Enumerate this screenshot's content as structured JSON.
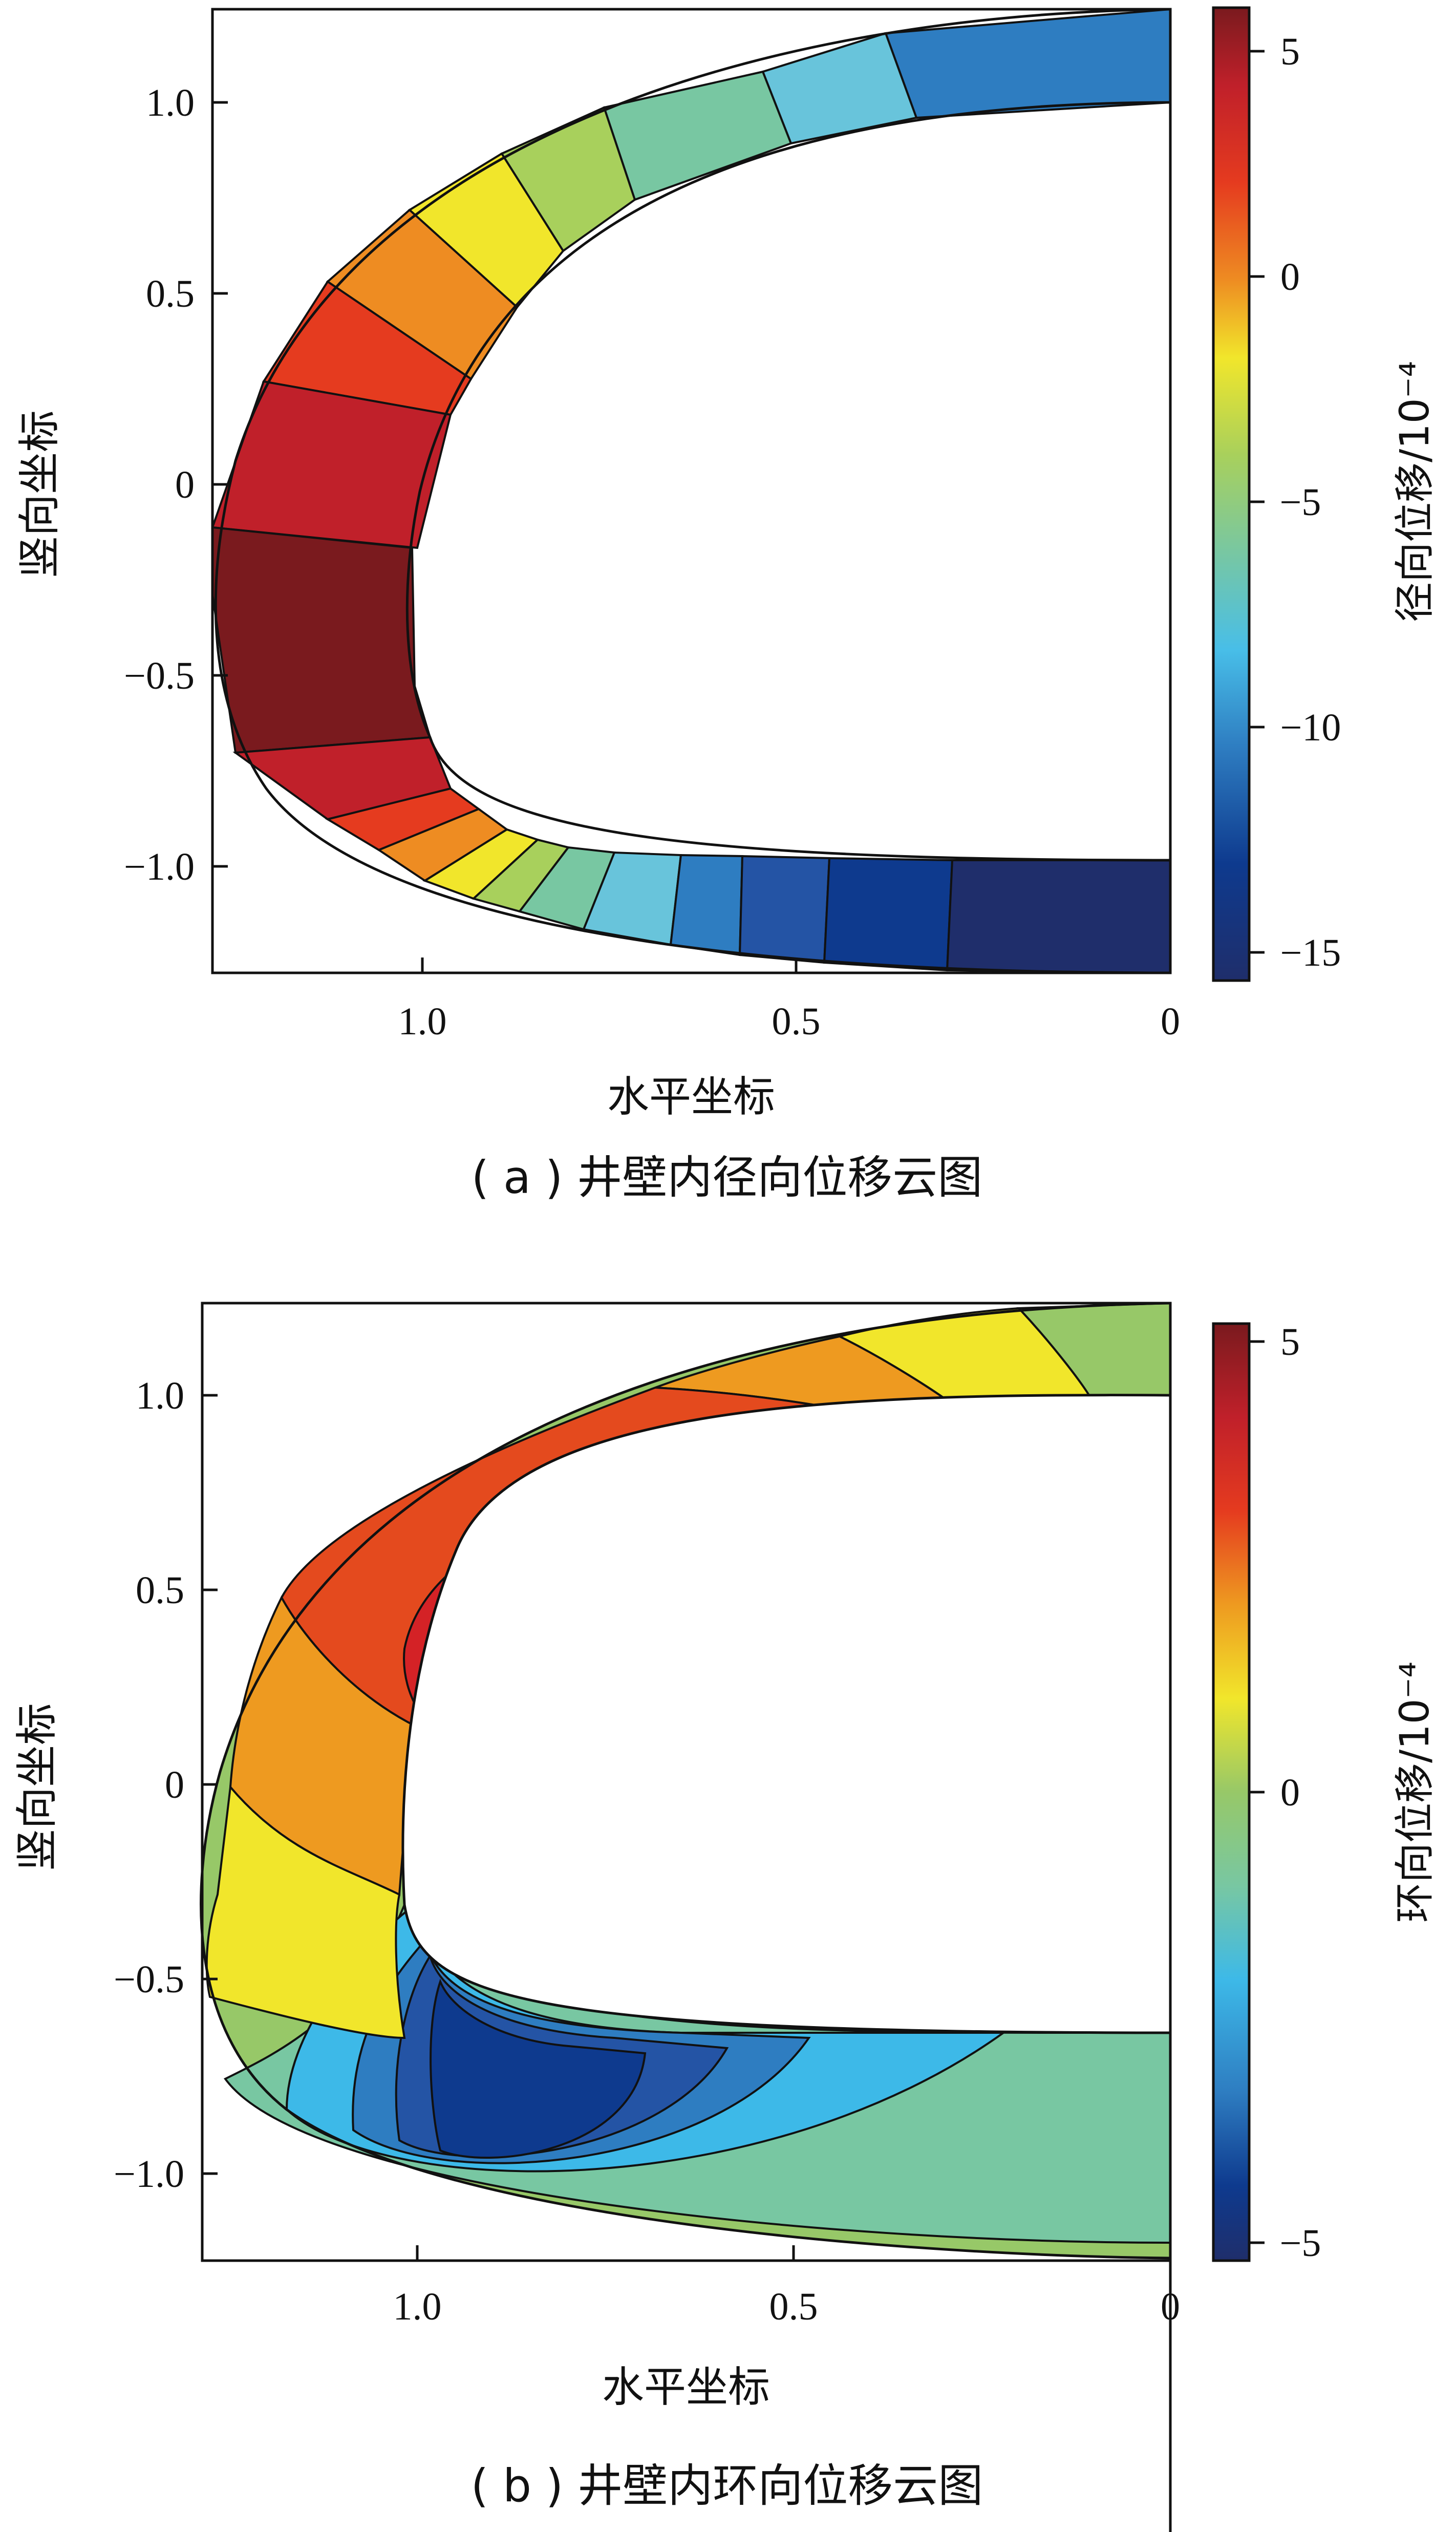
{
  "panels": [
    {
      "caption": "( a ) 井壁内径向位移云图",
      "xlabel": "水平坐标",
      "ylabel": "竖向坐标",
      "colorbar_label": "径向位移/10⁻⁴",
      "chart_data": {
        "type": "heatmap",
        "title": "",
        "xlabel": "水平坐标",
        "ylabel": "竖向坐标",
        "x_ticks": [
          "1.0",
          "0.5",
          "0"
        ],
        "y_ticks": [
          "1.0",
          "0.5",
          "0",
          "−0.5",
          "−1.0"
        ],
        "x_range": [
          1.28,
          0
        ],
        "y_range": [
          -1.28,
          1.22
        ],
        "colorbar": {
          "label": "径向位移/10⁻⁴",
          "range": [
            -15.5,
            6
          ],
          "ticks": [
            "5",
            "0",
            "−5",
            "−10",
            "−15"
          ],
          "tick_values": [
            5,
            0,
            -5,
            -10,
            -15
          ]
        },
        "contour_bands": [
          {
            "region": "top, 0–0.35",
            "value": -11
          },
          {
            "region": "top, 0.35–0.55",
            "value": -8
          },
          {
            "region": "top, 0.55–0.72",
            "value": -6
          },
          {
            "region": "top, 0.72–0.88",
            "value": -4
          },
          {
            "region": "upper bend",
            "value": -2
          },
          {
            "region": "upper bend",
            "value": 0
          },
          {
            "region": "upper side",
            "value": 2
          },
          {
            "region": "side",
            "value": 4
          },
          {
            "region": "lower side",
            "value": 5.5
          },
          {
            "region": "lower bend",
            "value": 4
          },
          {
            "region": "lower bend",
            "value": 2
          },
          {
            "region": "bottom",
            "value": 0
          },
          {
            "region": "bottom",
            "value": -2
          },
          {
            "region": "bottom",
            "value": -4
          },
          {
            "region": "bottom",
            "value": -6
          },
          {
            "region": "bottom",
            "value": -8
          },
          {
            "region": "bottom",
            "value": -10
          },
          {
            "region": "bottom",
            "value": -12
          },
          {
            "region": "bottom",
            "value": -14
          },
          {
            "region": "bottom, 0–0.3",
            "value": -15.5
          }
        ]
      }
    },
    {
      "caption": "( b ) 井壁内环向位移云图",
      "xlabel": "水平坐标",
      "ylabel": "竖向坐标",
      "colorbar_label": "环向位移/10⁻⁴",
      "chart_data": {
        "type": "heatmap",
        "title": "",
        "xlabel": "水平坐标",
        "ylabel": "竖向坐标",
        "x_ticks": [
          "1.0",
          "0.5",
          "0"
        ],
        "y_ticks": [
          "1.0",
          "0.5",
          "0",
          "−0.5",
          "−1.0"
        ],
        "x_range": [
          1.28,
          0
        ],
        "y_range": [
          -1.28,
          1.22
        ],
        "colorbar": {
          "label": "环向位移/10⁻⁴",
          "range": [
            -5.5,
            5.5
          ],
          "ticks": [
            "5",
            "0",
            "−5"
          ],
          "tick_values": [
            5,
            0,
            -5
          ]
        },
        "contour_bands": [
          {
            "region": "top, 0–0.15",
            "value": 0
          },
          {
            "region": "top, 0.15–0.3",
            "value": 1
          },
          {
            "region": "top, 0.3–0.5",
            "value": 2
          },
          {
            "region": "top/upper bend",
            "value": 3
          },
          {
            "region": "upper bend",
            "value": 4
          },
          {
            "region": "upper bend core",
            "value": 5
          },
          {
            "region": "side",
            "value": 2
          },
          {
            "region": "side",
            "value": 1
          },
          {
            "region": "lower side",
            "value": 0
          },
          {
            "region": "lower bend",
            "value": -1
          },
          {
            "region": "lower bend",
            "value": -2
          },
          {
            "region": "lower bend",
            "value": -3
          },
          {
            "region": "lower bend",
            "value": -4
          },
          {
            "region": "lower bend core",
            "value": -5
          },
          {
            "region": "bottom",
            "value": -1
          }
        ]
      }
    }
  ]
}
